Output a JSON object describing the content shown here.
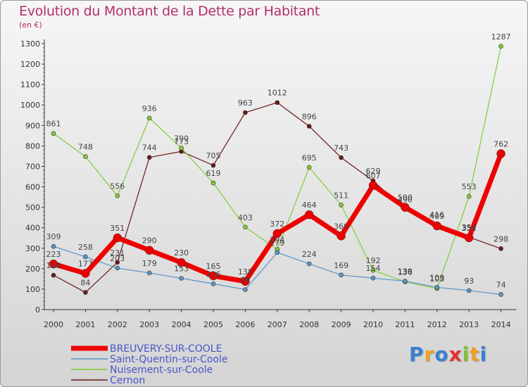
{
  "header": {
    "title": "Evolution du Montant de la Dette par Habitant",
    "subtitle": "(en €)"
  },
  "logo_text": "Proxiti",
  "chart_data": {
    "type": "line",
    "title": "Evolution du Montant de la Dette par Habitant",
    "ylabel": "(en €)",
    "xlabel": "",
    "ylim": [
      0,
      1300
    ],
    "yticks": [
      0,
      100,
      200,
      300,
      400,
      500,
      600,
      700,
      800,
      900,
      1000,
      1100,
      1200,
      1300
    ],
    "x": [
      2000,
      2001,
      2002,
      2003,
      2004,
      2005,
      2006,
      2007,
      2008,
      2009,
      2010,
      2011,
      2012,
      2013,
      2014
    ],
    "grid": false,
    "legend_position": "bottom-left",
    "series": [
      {
        "name": "Cernon",
        "color": "#6b1818",
        "width": 1.2,
        "marker": 3,
        "values": [
          168,
          84,
          231,
          744,
          773,
          705,
          963,
          1012,
          896,
          743,
          629,
          490,
          416,
          354,
          298
        ]
      },
      {
        "name": "Nuisement-sur-Coole",
        "color": "#80cc33",
        "width": 1.2,
        "marker": 3,
        "values": [
          861,
          748,
          556,
          936,
          790,
          619,
          403,
          294,
          695,
          511,
          192,
          136,
          103,
          553,
          1287
        ]
      },
      {
        "name": "Saint-Quentin-sur-Coole",
        "color": "#5b95c8",
        "width": 1.2,
        "marker": 3,
        "values": [
          309,
          258,
          203,
          179,
          153,
          126,
          98,
          279,
          224,
          169,
          154,
          139,
          109,
          93,
          74
        ]
      },
      {
        "name": "BREUVERY-SUR-COOLE",
        "color": "#ee0000",
        "width": 7,
        "marker": 6,
        "values": [
          223,
          177,
          351,
          290,
          230,
          165,
          138,
          372,
          464,
          360,
          607,
          500,
          409,
          351,
          762
        ]
      }
    ]
  }
}
